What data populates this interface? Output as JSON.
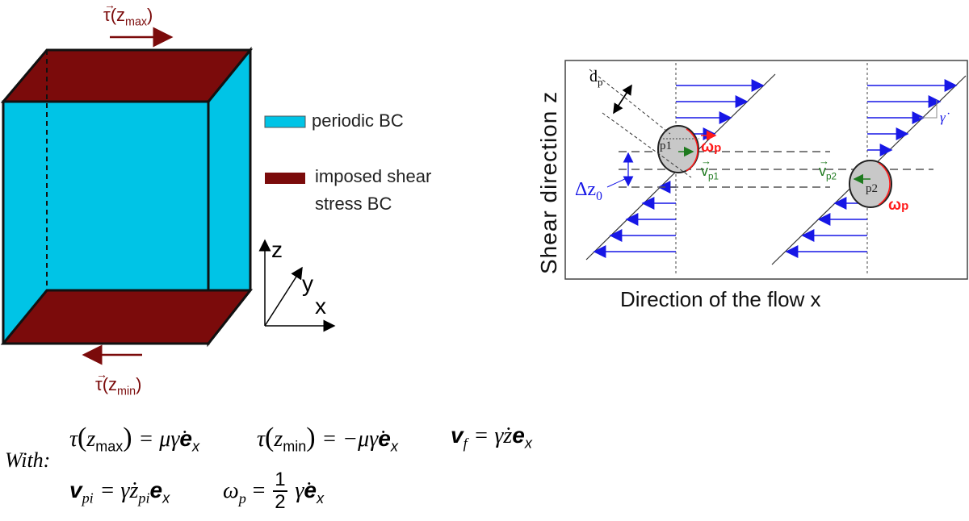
{
  "left": {
    "tau_top": {
      "vec": "τ",
      "arg_open": "(z",
      "sub": "max",
      "arg_close": ")"
    },
    "tau_bottom": {
      "vec": "τ",
      "arg_open": "(z",
      "sub": "min",
      "arg_close": ")"
    },
    "legend": {
      "periodic": "periodic BC",
      "imposed_line1": "imposed shear",
      "imposed_line2": "stress BC"
    },
    "axes": {
      "z": "z",
      "y": "y",
      "x": "x"
    }
  },
  "right": {
    "ylabel": "Shear direction z",
    "xlabel": "Direction of the flow x",
    "dp": "d",
    "dp_sub": "p",
    "dz": "Δz",
    "dz_sub": "0",
    "p1": "p1",
    "p2": "p2",
    "omega1": "ω",
    "omega1_sub": "p",
    "omega2": "ω",
    "omega2_sub": "p",
    "vp1": "v",
    "vp1_sub": "p1",
    "vp2": "v",
    "vp2_sub": "p2",
    "gammadot": "γ̇"
  },
  "equations": {
    "with": "With:",
    "tau_max_lhs": "τ",
    "tau_max_arg": "max",
    "tau_max_rhs": "= μγ̇",
    "tau_min_lhs": "τ",
    "tau_min_arg": "min",
    "tau_min_rhs": "= −μγ̇",
    "vf_lhs": "v",
    "vf_sub": "f",
    "vf_rhs": "= γ̇z",
    "vpi_lhs": "v",
    "vpi_sub": "pi",
    "vpi_rhs": "= γ̇z",
    "vpi_zsub": "pi",
    "omega_lhs": "ω",
    "omega_sub": "p",
    "omega_eq": "=",
    "half_num": "1",
    "half_den": "2",
    "omega_rhs": "γ̇",
    "e": "e",
    "e_sub": "x"
  },
  "colors": {
    "cyan": "#00c4e6",
    "darkred": "#7b0b0b",
    "orange": "#e0441c",
    "blue": "#1717e6",
    "red": "#ff1a1a",
    "green": "#1e7a1e"
  }
}
